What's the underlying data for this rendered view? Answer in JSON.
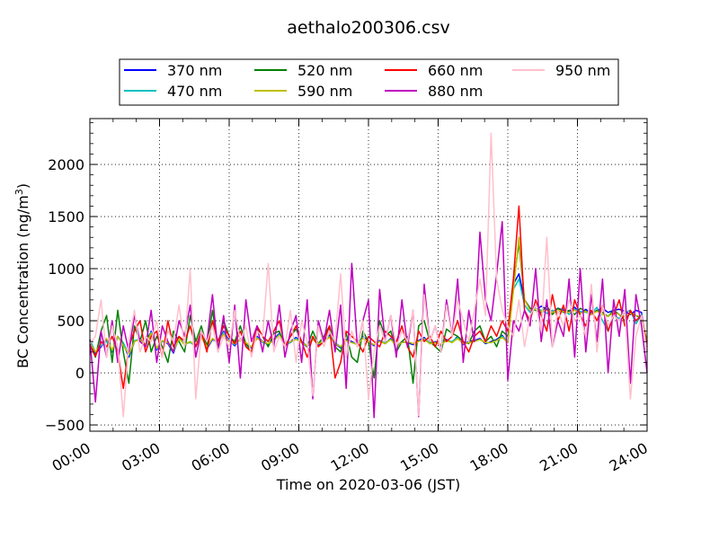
{
  "chart_data": {
    "type": "line",
    "title": "aethalo200306.csv",
    "xlabel": "Time on 2020-03-06 (JST)",
    "ylabel_main": "BC Concentration (ng/m",
    "ylabel_sup": "3",
    "ylabel_tail": ")",
    "xlim": [
      "00:00",
      "24:00"
    ],
    "ylim": [
      -560,
      2440
    ],
    "x_ticks": [
      "00:00",
      "03:00",
      "06:00",
      "09:00",
      "12:00",
      "15:00",
      "18:00",
      "21:00",
      "24:00"
    ],
    "y_ticks": [
      -500,
      0,
      500,
      1000,
      1500,
      2000
    ],
    "grid": true,
    "legend_position": "top",
    "sampling": "15-minute interval, 00:00 to 24:00",
    "series": [
      {
        "name": "370 nm",
        "color": "#0000ff",
        "values": [
          300,
          180,
          250,
          320,
          200,
          350,
          280,
          150,
          300,
          330,
          260,
          400,
          220,
          310,
          280,
          190,
          340,
          270,
          300,
          250,
          360,
          230,
          320,
          290,
          400,
          310,
          260,
          330,
          280,
          240,
          350,
          300,
          270,
          320,
          380,
          260,
          300,
          340,
          290,
          250,
          330,
          270,
          310,
          360,
          280,
          240,
          320,
          300,
          270,
          350,
          300,
          260,
          310,
          280,
          330,
          250,
          300,
          290,
          270,
          310,
          340,
          280,
          300,
          260,
          320,
          290,
          350,
          270,
          300,
          310,
          330,
          280,
          300,
          320,
          360,
          290,
          850,
          950,
          700,
          620,
          600,
          640,
          610,
          580,
          620,
          600,
          590,
          630,
          570,
          610,
          560,
          600,
          620,
          580,
          600,
          610,
          590,
          560,
          600,
          580,
          200
        ]
      },
      {
        "name": "470 nm",
        "color": "#00bfbf",
        "values": [
          320,
          200,
          260,
          300,
          210,
          340,
          290,
          170,
          310,
          320,
          250,
          390,
          230,
          300,
          290,
          200,
          330,
          280,
          290,
          260,
          350,
          240,
          330,
          280,
          390,
          300,
          270,
          320,
          290,
          250,
          340,
          290,
          280,
          310,
          370,
          270,
          290,
          330,
          300,
          260,
          320,
          280,
          300,
          350,
          290,
          250,
          310,
          290,
          280,
          340,
          290,
          270,
          300,
          290,
          320,
          260,
          290,
          300,
          280,
          300,
          330,
          290,
          290,
          270,
          310,
          300,
          340,
          280,
          290,
          300,
          320,
          290,
          290,
          310,
          350,
          300,
          800,
          900,
          650,
          580,
          620,
          600,
          570,
          600,
          580,
          620,
          560,
          610,
          590,
          580,
          570,
          630,
          500,
          400,
          550,
          520,
          580,
          600,
          470,
          560,
          250
        ]
      },
      {
        "name": "520 nm",
        "color": "#008000",
        "values": [
          280,
          150,
          400,
          550,
          100,
          600,
          200,
          -100,
          450,
          300,
          500,
          200,
          350,
          250,
          100,
          400,
          300,
          200,
          550,
          300,
          450,
          250,
          600,
          250,
          500,
          350,
          300,
          450,
          280,
          200,
          420,
          350,
          250,
          380,
          400,
          250,
          350,
          420,
          300,
          250,
          400,
          280,
          350,
          450,
          250,
          200,
          380,
          150,
          100,
          400,
          300,
          -50,
          500,
          350,
          400,
          200,
          300,
          350,
          -100,
          450,
          500,
          300,
          250,
          200,
          420,
          380,
          350,
          300,
          280,
          400,
          450,
          300,
          350,
          250,
          400,
          350,
          850,
          1250,
          700,
          620,
          600,
          580,
          640,
          560,
          620,
          580,
          600,
          560,
          620,
          590,
          560,
          600,
          580,
          540,
          600,
          560,
          500,
          580,
          550,
          520,
          300
        ]
      },
      {
        "name": "590 nm",
        "color": "#bfbf00",
        "values": [
          290,
          200,
          280,
          330,
          220,
          350,
          260,
          180,
          300,
          320,
          270,
          380,
          240,
          310,
          290,
          210,
          330,
          270,
          300,
          260,
          340,
          250,
          330,
          290,
          370,
          300,
          280,
          320,
          290,
          250,
          330,
          300,
          280,
          310,
          360,
          270,
          300,
          320,
          290,
          260,
          320,
          280,
          300,
          340,
          280,
          250,
          310,
          290,
          270,
          330,
          300,
          270,
          300,
          280,
          320,
          260,
          290,
          300,
          280,
          300,
          320,
          280,
          290,
          270,
          310,
          290,
          330,
          280,
          290,
          300,
          320,
          290,
          290,
          310,
          340,
          290,
          780,
          1300,
          700,
          600,
          610,
          590,
          600,
          580,
          600,
          590,
          580,
          600,
          570,
          590,
          560,
          590,
          560,
          540,
          580,
          560,
          540,
          570,
          550,
          540,
          280
        ]
      },
      {
        "name": "660 nm",
        "color": "#ff0000",
        "values": [
          270,
          160,
          300,
          250,
          350,
          200,
          -150,
          250,
          400,
          500,
          200,
          350,
          400,
          150,
          500,
          250,
          350,
          300,
          450,
          250,
          400,
          200,
          500,
          300,
          450,
          350,
          280,
          400,
          250,
          200,
          450,
          350,
          300,
          400,
          500,
          250,
          350,
          450,
          300,
          150,
          350,
          250,
          300,
          450,
          -50,
          100,
          400,
          350,
          300,
          200,
          350,
          300,
          250,
          400,
          350,
          300,
          450,
          250,
          150,
          400,
          300,
          350,
          250,
          400,
          300,
          350,
          500,
          300,
          200,
          350,
          400,
          300,
          450,
          350,
          500,
          400,
          900,
          1600,
          600,
          500,
          700,
          550,
          400,
          750,
          500,
          650,
          400,
          700,
          550,
          450,
          600,
          500,
          650,
          400,
          550,
          700,
          450,
          600,
          500,
          550,
          250
        ]
      },
      {
        "name": "880 nm",
        "color": "#bf00bf",
        "values": [
          320,
          -280,
          400,
          150,
          500,
          100,
          450,
          200,
          550,
          300,
          250,
          600,
          100,
          450,
          300,
          200,
          500,
          350,
          650,
          150,
          400,
          300,
          750,
          200,
          550,
          100,
          650,
          -50,
          700,
          300,
          450,
          200,
          500,
          250,
          650,
          150,
          400,
          550,
          100,
          700,
          -250,
          500,
          300,
          600,
          200,
          650,
          -150,
          1050,
          250,
          500,
          700,
          -430,
          800,
          300,
          550,
          150,
          700,
          250,
          600,
          -420,
          850,
          300,
          450,
          200,
          700,
          350,
          900,
          100,
          600,
          300,
          1350,
          700,
          500,
          950,
          1450,
          -70,
          500,
          400,
          600,
          450,
          1000,
          300,
          700,
          250,
          500,
          350,
          900,
          150,
          1000,
          200,
          750,
          300,
          900,
          0,
          700,
          350,
          800,
          -100,
          750,
          450,
          0
        ]
      },
      {
        "name": "950 nm",
        "color": "#ffc0cb",
        "values": [
          280,
          350,
          700,
          150,
          450,
          250,
          -420,
          300,
          600,
          200,
          350,
          300,
          500,
          150,
          400,
          300,
          650,
          250,
          1000,
          -250,
          400,
          300,
          450,
          200,
          350,
          250,
          600,
          300,
          450,
          150,
          400,
          350,
          1050,
          200,
          350,
          250,
          600,
          100,
          500,
          300,
          -220,
          450,
          250,
          400,
          300,
          950,
          150,
          400,
          250,
          500,
          -250,
          200,
          450,
          300,
          550,
          250,
          400,
          300,
          600,
          -410,
          750,
          300,
          450,
          200,
          650,
          350,
          700,
          500,
          300,
          600,
          900,
          550,
          2300,
          900,
          600,
          450,
          350,
          700,
          250,
          550,
          650,
          400,
          1300,
          250,
          600,
          450,
          700,
          500,
          550,
          350,
          850,
          200,
          650,
          450,
          550,
          500,
          600,
          -250,
          350,
          550,
          200
        ]
      }
    ]
  }
}
